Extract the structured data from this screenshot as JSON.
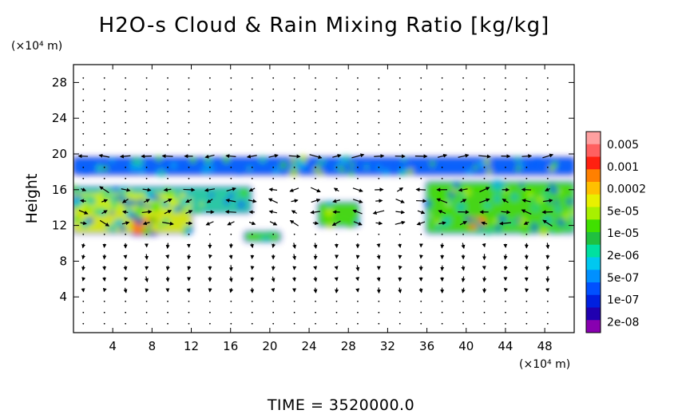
{
  "chart_data": {
    "type": "heatmap",
    "title": "H2O-s Cloud & Rain Mixing Ratio [kg/kg]",
    "ylabel": "Height",
    "y_unit": "(×10⁴ m)",
    "x_unit": "(×10⁴ m)",
    "xlim": [
      0,
      51
    ],
    "ylim": [
      0,
      30
    ],
    "x_ticks": [
      "4",
      "8",
      "12",
      "16",
      "20",
      "24",
      "28",
      "32",
      "36",
      "40",
      "44",
      "48"
    ],
    "y_ticks": [
      "4",
      "8",
      "12",
      "16",
      "20",
      "24",
      "28"
    ],
    "grid": "dotted vector grid",
    "colorbar": {
      "placement": "right",
      "labels": [
        "0.005",
        "0.001",
        "0.0002",
        "5e-05",
        "1e-05",
        "2e-06",
        "5e-07",
        "1e-07",
        "2e-08"
      ],
      "colors": [
        "#ffa0a0",
        "#ff6060",
        "#ff2010",
        "#ff8000",
        "#ffc000",
        "#e8f000",
        "#a8f000",
        "#40e000",
        "#20c040",
        "#00e0a0",
        "#00c8f0",
        "#0090ff",
        "#0050ff",
        "#0020e0",
        "#2000b0",
        "#8800b0"
      ]
    },
    "bands": [
      {
        "x": [
          0,
          51
        ],
        "y": [
          17.8,
          19.5
        ],
        "level": "1e-07"
      },
      {
        "x": [
          0,
          18
        ],
        "y": [
          13.5,
          16.2
        ],
        "level": "2e-06"
      },
      {
        "x": [
          0,
          12
        ],
        "y": [
          11.2,
          15.6
        ],
        "level": "5e-05"
      },
      {
        "x": [
          6,
          8.5
        ],
        "y": [
          11.0,
          12.8
        ],
        "level": "0.0002"
      },
      {
        "x": [
          17.5,
          21
        ],
        "y": [
          10.3,
          11.2
        ],
        "level": "1e-05"
      },
      {
        "x": [
          25,
          29
        ],
        "y": [
          12.0,
          14.5
        ],
        "level": "1e-05"
      },
      {
        "x": [
          36,
          51
        ],
        "y": [
          11.2,
          16.8
        ],
        "level": "1e-05"
      },
      {
        "x": [
          40,
          42
        ],
        "y": [
          11.6,
          13.0
        ],
        "level": "0.0002"
      }
    ],
    "vectors": "wind vector arrows on a regular grid (mostly small, stronger near 11–20 ×10⁴ m height)"
  },
  "footer": {
    "time_label": "TIME = 3520000.0"
  }
}
